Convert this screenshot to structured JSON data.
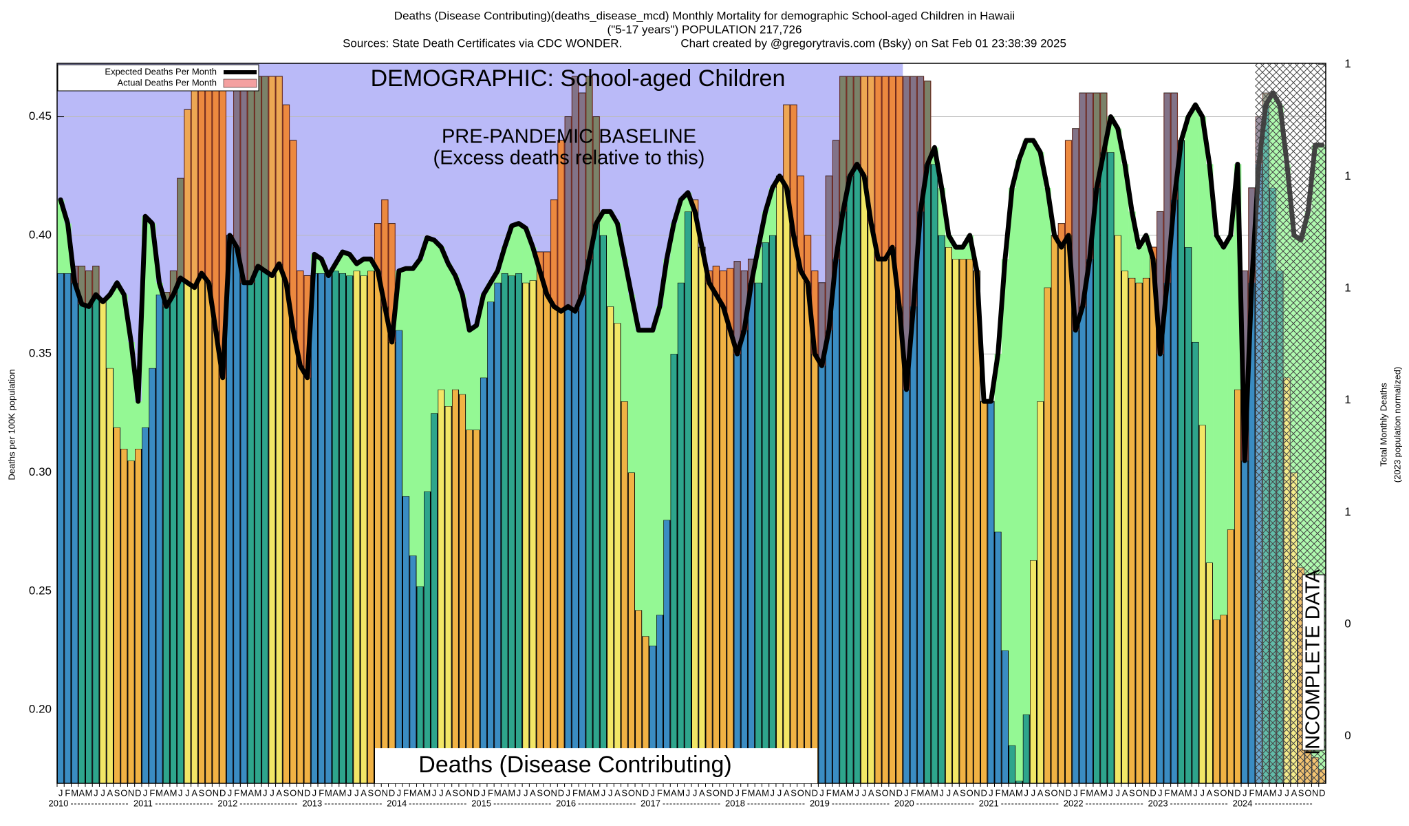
{
  "chart_data": {
    "type": "bar",
    "title": [
      "Deaths (Disease Contributing)(deaths_disease_mcd) Monthly Mortality for demographic School-aged Children in Hawaii",
      "(\"5-17 years\") POPULATION 217,726",
      "Sources: State Death Certificates via CDC WONDER.                  Chart created by @gregorytravis.com (Bsky) on Sat Feb 01 23:38:39 2025"
    ],
    "annotations": [
      "DEMOGRAPHIC: School-aged Children",
      "PRE-PANDEMIC BASELINE",
      "(Excess deaths relative to this)",
      "Deaths (Disease Contributing)",
      "INCOMPLETE DATA"
    ],
    "ylabel": "Deaths per 100K population",
    "y2label": [
      "Total Monthly Deaths",
      "(2023 population normalized)"
    ],
    "categories": [
      "J",
      "F",
      "M",
      "A",
      "M",
      "J",
      "J",
      "A",
      "S",
      "O",
      "N",
      "D",
      "J",
      "F",
      "M",
      "A",
      "M",
      "J",
      "J",
      "A",
      "S",
      "O",
      "N",
      "D",
      "J",
      "F",
      "M",
      "A",
      "M",
      "J",
      "J",
      "A",
      "S",
      "O",
      "N",
      "D",
      "J",
      "F",
      "M",
      "A",
      "M",
      "J",
      "J",
      "A",
      "S",
      "O",
      "N",
      "D",
      "J",
      "F",
      "M",
      "A",
      "M",
      "J",
      "J",
      "A",
      "S",
      "O",
      "N",
      "D",
      "J",
      "F",
      "M",
      "A",
      "M",
      "J",
      "J",
      "A",
      "S",
      "O",
      "N",
      "D",
      "J",
      "F",
      "M",
      "A",
      "M",
      "J",
      "J",
      "A",
      "S",
      "O",
      "N",
      "D",
      "J",
      "F",
      "M",
      "A",
      "M",
      "J",
      "J",
      "A",
      "S",
      "O",
      "N",
      "D",
      "J",
      "F",
      "M",
      "A",
      "M",
      "J",
      "J",
      "A",
      "S",
      "O",
      "N",
      "D",
      "J",
      "F",
      "M",
      "A",
      "M",
      "J",
      "J",
      "A",
      "S",
      "O",
      "N",
      "D",
      "J",
      "F",
      "M",
      "A",
      "M",
      "J",
      "J",
      "A",
      "S",
      "O",
      "N",
      "D",
      "J",
      "F",
      "M",
      "A",
      "M",
      "J",
      "J",
      "A",
      "S",
      "O",
      "N",
      "D",
      "J",
      "F",
      "M",
      "A",
      "M",
      "J",
      "J",
      "A",
      "S",
      "O",
      "N",
      "D",
      "J",
      "F",
      "M",
      "A",
      "M",
      "J",
      "J",
      "A",
      "S",
      "O",
      "N",
      "D",
      "J",
      "F",
      "M",
      "A",
      "M",
      "J",
      "J",
      "A",
      "S",
      "O",
      "N",
      "D"
    ],
    "year_labels": [
      "2010",
      "2011",
      "2012",
      "2013",
      "2014",
      "2015",
      "2016",
      "2017",
      "2018",
      "2019",
      "2020",
      "2021",
      "2022",
      "2023",
      "2024"
    ],
    "series": [
      {
        "name": "Expected Deaths Per Month",
        "type": "line",
        "color": "#000000",
        "values": [
          0.415,
          0.405,
          0.38,
          0.371,
          0.37,
          0.375,
          0.372,
          0.375,
          0.38,
          0.375,
          0.355,
          0.33,
          0.408,
          0.405,
          0.38,
          0.37,
          0.375,
          0.382,
          0.38,
          0.378,
          0.384,
          0.38,
          0.36,
          0.34,
          0.4,
          0.395,
          0.38,
          0.38,
          0.387,
          0.385,
          0.383,
          0.388,
          0.38,
          0.36,
          0.345,
          0.34,
          0.392,
          0.39,
          0.383,
          0.388,
          0.393,
          0.392,
          0.388,
          0.39,
          0.39,
          0.385,
          0.37,
          0.355,
          0.385,
          0.386,
          0.386,
          0.39,
          0.399,
          0.398,
          0.395,
          0.388,
          0.383,
          0.375,
          0.36,
          0.362,
          0.375,
          0.38,
          0.385,
          0.395,
          0.404,
          0.405,
          0.403,
          0.395,
          0.385,
          0.375,
          0.37,
          0.368,
          0.37,
          0.368,
          0.375,
          0.39,
          0.405,
          0.41,
          0.41,
          0.405,
          0.39,
          0.375,
          0.36,
          0.36,
          0.36,
          0.37,
          0.39,
          0.405,
          0.415,
          0.418,
          0.41,
          0.395,
          0.38,
          0.375,
          0.37,
          0.36,
          0.35,
          0.36,
          0.38,
          0.395,
          0.41,
          0.42,
          0.425,
          0.42,
          0.4,
          0.385,
          0.38,
          0.35,
          0.345,
          0.36,
          0.39,
          0.41,
          0.425,
          0.43,
          0.425,
          0.405,
          0.39,
          0.39,
          0.395,
          0.37,
          0.335,
          0.37,
          0.41,
          0.43,
          0.437,
          0.42,
          0.4,
          0.395,
          0.395,
          0.4,
          0.385,
          0.33,
          0.33,
          0.35,
          0.39,
          0.42,
          0.432,
          0.44,
          0.44,
          0.435,
          0.42,
          0.4,
          0.395,
          0.4,
          0.36,
          0.37,
          0.39,
          0.42,
          0.435,
          0.45,
          0.445,
          0.43,
          0.41,
          0.395,
          0.4,
          0.39,
          0.35,
          0.38,
          0.415,
          0.44,
          0.45,
          0.455,
          0.45,
          0.43,
          0.4,
          0.395,
          0.4,
          0.43,
          0.305,
          0.38,
          0.43,
          0.455,
          0.46,
          0.455,
          0.43,
          0.4,
          0.398,
          0.41,
          0.438,
          0.438
        ]
      },
      {
        "name": "Actual Deaths Per Month",
        "type": "bar",
        "color": "#f4a0a0",
        "values": [
          0.384,
          0.384,
          0.387,
          0.387,
          0.385,
          0.387,
          0.373,
          0.344,
          0.319,
          0.31,
          0.305,
          0.31,
          0.319,
          0.344,
          0.375,
          0.376,
          0.385,
          0.424,
          0.453,
          0.467,
          0.467,
          0.467,
          0.467,
          0.467,
          0.4,
          0.467,
          0.467,
          0.467,
          0.467,
          0.467,
          0.467,
          0.467,
          0.455,
          0.44,
          0.385,
          0.383,
          0.384,
          0.384,
          0.385,
          0.385,
          0.384,
          0.383,
          0.385,
          0.383,
          0.385,
          0.405,
          0.415,
          0.405,
          0.36,
          0.29,
          0.265,
          0.252,
          0.292,
          0.325,
          0.335,
          0.328,
          0.335,
          0.333,
          0.318,
          0.318,
          0.34,
          0.372,
          0.38,
          0.384,
          0.383,
          0.384,
          0.38,
          0.381,
          0.393,
          0.393,
          0.415,
          0.44,
          0.45,
          0.467,
          0.46,
          0.467,
          0.45,
          0.4,
          0.37,
          0.363,
          0.33,
          0.3,
          0.242,
          0.231,
          0.227,
          0.24,
          0.28,
          0.35,
          0.38,
          0.41,
          0.415,
          0.395,
          0.385,
          0.387,
          0.385,
          0.386,
          0.389,
          0.385,
          0.39,
          0.38,
          0.397,
          0.4,
          0.425,
          0.455,
          0.455,
          0.425,
          0.4,
          0.385,
          0.38,
          0.425,
          0.44,
          0.467,
          0.467,
          0.467,
          0.467,
          0.467,
          0.467,
          0.467,
          0.467,
          0.467,
          0.467,
          0.467,
          0.467,
          0.465,
          0.43,
          0.4,
          0.395,
          0.39,
          0.39,
          0.39,
          0.385,
          0.33,
          0.33,
          0.275,
          0.225,
          0.185,
          0.17,
          0.198,
          0.263,
          0.33,
          0.378,
          0.4,
          0.405,
          0.44,
          0.445,
          0.46,
          0.46,
          0.46,
          0.46,
          0.435,
          0.4,
          0.385,
          0.382,
          0.38,
          0.382,
          0.395,
          0.41,
          0.46,
          0.46,
          0.44,
          0.395,
          0.355,
          0.32,
          0.262,
          0.238,
          0.24,
          0.276,
          0.335,
          0.385,
          0.42,
          0.45,
          0.46,
          0.42,
          0.385,
          0.34,
          0.3,
          0.26,
          0.2,
          0.18,
          0.175
        ]
      }
    ],
    "bar_colors": [
      "#3a8cc2",
      "#3a8cc2",
      "#3a8cc2",
      "#2ea58c",
      "#2ea58c",
      "#2ea58c",
      "#f2e666",
      "#f2e666",
      "#f0b244",
      "#f0b244",
      "#f0b244",
      "#f0b244"
    ],
    "below_color": "#94f894",
    "above_color": "#e8503a",
    "baseline_color": "#babaf8",
    "baseline_months": 120,
    "incomplete_months": 10,
    "ylim": [
      0.169,
      0.4725
    ],
    "yticks": [
      {
        "value": 0.2,
        "label": "0.20"
      },
      0.25,
      {
        "value": 0.3,
        "label": "0.30"
      },
      0.35,
      {
        "value": 0.4,
        "label": "0.40"
      },
      0.45
    ],
    "y2lim": [
      0.358,
      1.001
    ],
    "y2ticks": [
      {
        "value": 0.4,
        "label": "0"
      },
      {
        "value": 0.5,
        "label": "0"
      },
      {
        "value": 0.6,
        "label": "1"
      },
      {
        "value": 0.7,
        "label": "1"
      },
      {
        "value": 0.8,
        "label": "1"
      },
      {
        "value": 0.9,
        "label": "1"
      },
      {
        "value": 1.0,
        "label": "1"
      }
    ],
    "grid": true,
    "legend": "upper left"
  }
}
